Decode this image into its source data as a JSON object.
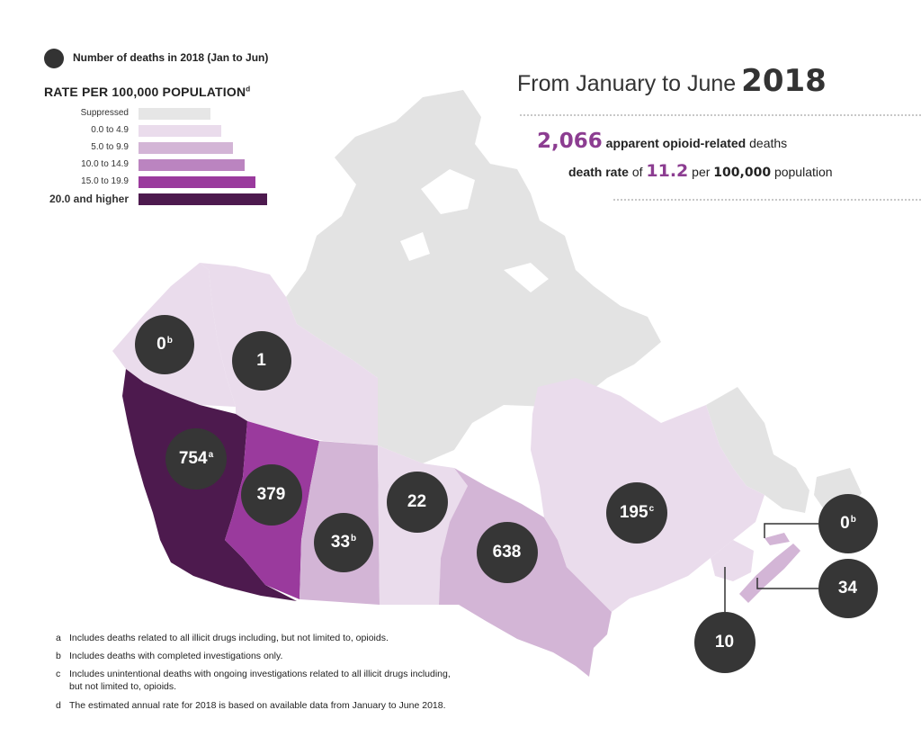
{
  "legend": {
    "deaths_label": "Number of deaths in 2018 (Jan to Jun)",
    "rate_title": "RATE PER 100,000 POPULATION",
    "rate_title_sup": "d",
    "categories": [
      {
        "label": "Suppressed",
        "color": "#e6e6e6"
      },
      {
        "label": "0.0 to 4.9",
        "color": "#eadcec"
      },
      {
        "label": "5.0 to 9.9",
        "color": "#d3b5d6"
      },
      {
        "label": "10.0 to 14.9",
        "color": "#bb84c0"
      },
      {
        "label": "15.0 to 19.9",
        "color": "#9a3a9d"
      },
      {
        "label": "20.0 and higher",
        "color": "#4d1a4e"
      }
    ]
  },
  "headline": {
    "lead": "From January to June",
    "year": "2018"
  },
  "stats": {
    "deaths_number": "2,066",
    "deaths_text_bold": "apparent opioid-related",
    "deaths_text_rest": "deaths",
    "rate_label_bold": "death rate",
    "rate_of": "of",
    "rate_value": "11.2",
    "rate_per": "per",
    "rate_population_bold": "100,000",
    "rate_population_rest": "population"
  },
  "regions": [
    {
      "name": "Yukon",
      "deaths": "0",
      "note": "b",
      "color": "#eadcec"
    },
    {
      "name": "Northwest Territories",
      "deaths": "1",
      "note": "",
      "color": "#eadcec"
    },
    {
      "name": "British Columbia",
      "deaths": "754",
      "note": "a",
      "color": "#4d1a4e"
    },
    {
      "name": "Alberta",
      "deaths": "379",
      "note": "",
      "color": "#9a3a9d"
    },
    {
      "name": "Saskatchewan",
      "deaths": "33",
      "note": "b",
      "color": "#d3b5d6"
    },
    {
      "name": "Manitoba",
      "deaths": "22",
      "note": "",
      "color": "#eadcec"
    },
    {
      "name": "Ontario",
      "deaths": "638",
      "note": "",
      "color": "#d3b5d6"
    },
    {
      "name": "Quebec",
      "deaths": "195",
      "note": "c",
      "color": "#eadcec"
    },
    {
      "name": "Prince Edward Island",
      "deaths": "0",
      "note": "b",
      "color": "#d3b5d6"
    },
    {
      "name": "Nova Scotia",
      "deaths": "34",
      "note": "",
      "color": "#d3b5d6"
    },
    {
      "name": "New Brunswick",
      "deaths": "10",
      "note": "",
      "color": "#eadcec"
    }
  ],
  "footnotes": [
    {
      "letter": "a",
      "text": "Includes deaths related to all illicit drugs including, but not limited to, opioids."
    },
    {
      "letter": "b",
      "text": "Includes deaths with completed investigations only."
    },
    {
      "letter": "c",
      "text": "Includes unintentional deaths with ongoing investigations related to all illicit drugs including,",
      "text2": "but not limited to, opioids."
    },
    {
      "letter": "d",
      "text": "The estimated annual rate for 2018 is based on available data from January to June 2018."
    }
  ]
}
